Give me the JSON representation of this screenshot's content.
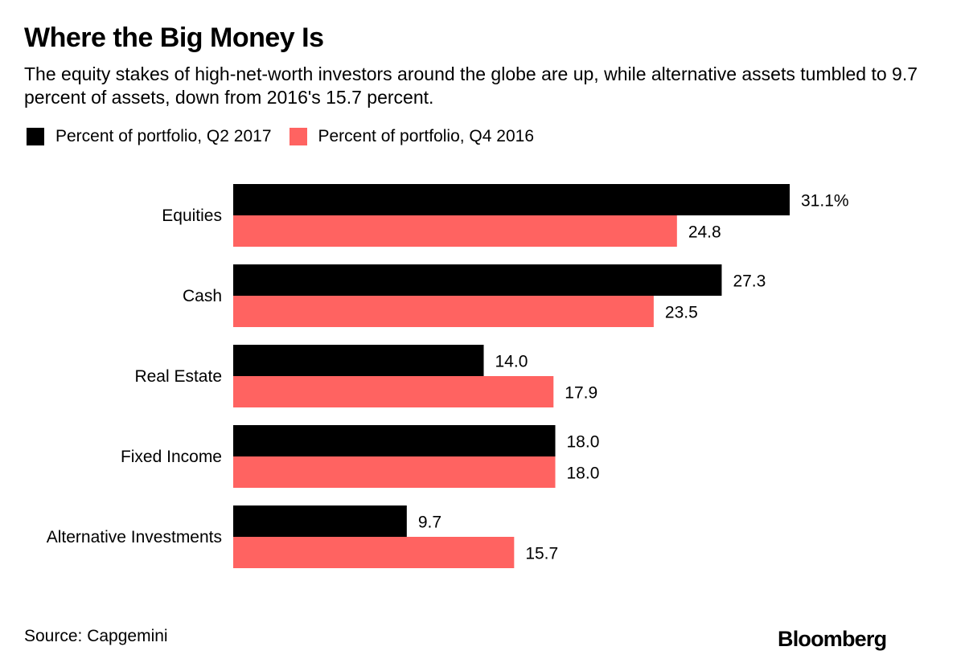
{
  "title": "Where the Big Money Is",
  "subtitle": "The equity stakes of high-net-worth investors around the globe are up, while alternative assets tumbled to 9.7 percent of assets, down from 2016's 15.7 percent.",
  "source": "Source: Capgemini",
  "logo": "Bloomberg",
  "chart_data": {
    "type": "bar",
    "orientation": "horizontal",
    "categories": [
      "Equities",
      "Cash",
      "Real Estate",
      "Fixed Income",
      "Alternative Investments"
    ],
    "series": [
      {
        "name": "Percent of portfolio, Q2 2017",
        "color": "#000000",
        "values": [
          31.1,
          27.3,
          14.0,
          18.0,
          9.7
        ],
        "labels": [
          "31.1%",
          "27.3",
          "14.0",
          "18.0",
          "9.7"
        ]
      },
      {
        "name": "Percent of portfolio, Q4 2016",
        "color": "#ff6361",
        "values": [
          24.8,
          23.5,
          17.9,
          18.0,
          15.7
        ],
        "labels": [
          "24.8",
          "23.5",
          "17.9",
          "18.0",
          "15.7"
        ]
      }
    ],
    "xlim": [
      0,
      31.1
    ],
    "grid": false,
    "legend": "top-left"
  }
}
